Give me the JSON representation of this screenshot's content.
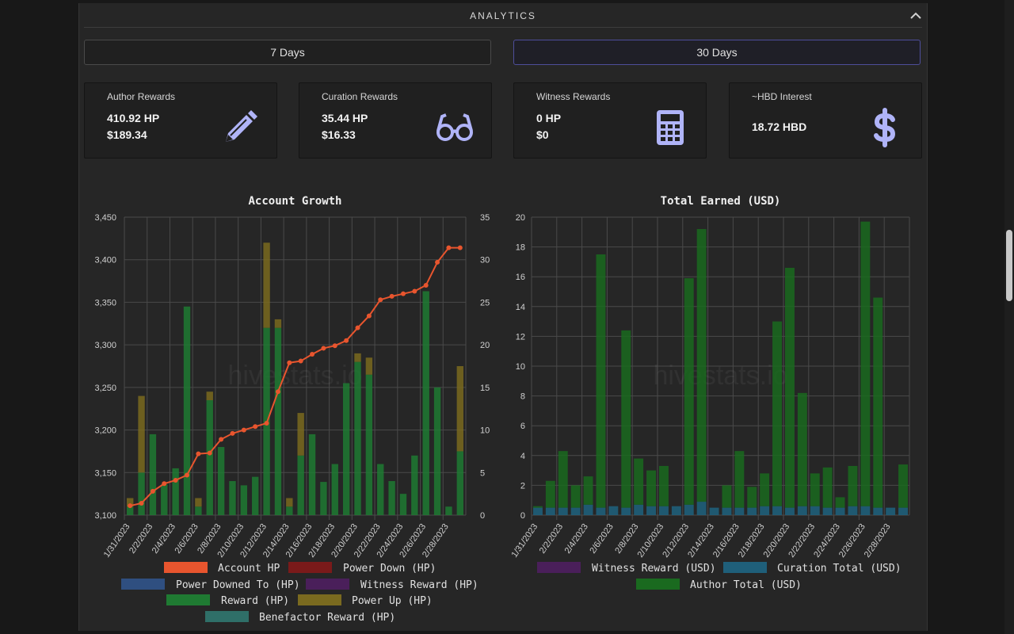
{
  "section": {
    "title": "ANALYTICS"
  },
  "periods": {
    "seven": "7 Days",
    "thirty": "30 Days",
    "active": "thirty"
  },
  "cards": [
    {
      "title": "Author Rewards",
      "value1": "410.92 HP",
      "value2": "$189.34",
      "icon": "pencil-icon"
    },
    {
      "title": "Curation Rewards",
      "value1": "35.44 HP",
      "value2": "$16.33",
      "icon": "glasses-icon"
    },
    {
      "title": "Witness Rewards",
      "value1": "0 HP",
      "value2": "$0",
      "icon": "calculator-icon"
    },
    {
      "title": "~HBD Interest",
      "value1": "18.72 HBD",
      "icon": "dollar-icon"
    }
  ],
  "colors": {
    "accent": "#b0b4f8",
    "account_hp": "#e8552e",
    "power_down": "#7a1a1a",
    "power_downed_to": "#2f4f80",
    "witness_reward": "#4a1f5a",
    "reward": "#1f7a32",
    "power_up": "#7a6a1f",
    "benefactor": "#2f6f68",
    "curation": "#1f5f7a",
    "author": "#1a6a1f"
  },
  "watermark": "hivestats.io",
  "chart_data": [
    {
      "type": "bar",
      "title": "Account Growth",
      "categories": [
        "1/31/2023",
        "2/1/2023",
        "2/2/2023",
        "2/3/2023",
        "2/4/2023",
        "2/5/2023",
        "2/6/2023",
        "2/7/2023",
        "2/8/2023",
        "2/9/2023",
        "2/10/2023",
        "2/11/2023",
        "2/12/2023",
        "2/13/2023",
        "2/14/2023",
        "2/15/2023",
        "2/16/2023",
        "2/17/2023",
        "2/18/2023",
        "2/19/2023",
        "2/20/2023",
        "2/21/2023",
        "2/22/2023",
        "2/23/2023",
        "2/24/2023",
        "2/25/2023",
        "2/26/2023",
        "2/27/2023",
        "2/28/2023",
        "3/1/2023"
      ],
      "tick_labels": [
        "1/31/2023",
        "2/2/2023",
        "2/4/2023",
        "2/6/2023",
        "2/8/2023",
        "2/10/2023",
        "2/12/2023",
        "2/14/2023",
        "2/16/2023",
        "2/18/2023",
        "2/20/2023",
        "2/22/2023",
        "2/24/2023",
        "2/26/2023",
        "2/28/2023"
      ],
      "y_left": {
        "min": 3100,
        "max": 3450,
        "ticks": [
          "3,100",
          "3,150",
          "3,200",
          "3,250",
          "3,300",
          "3,350",
          "3,400",
          "3,450"
        ]
      },
      "y_right": {
        "min": 0,
        "max": 35,
        "ticks": [
          "0",
          "5",
          "10",
          "15",
          "20",
          "25",
          "30",
          "35"
        ]
      },
      "series": [
        {
          "name": "Account HP",
          "type": "line",
          "axis": "left",
          "values": [
            3111,
            3114,
            3128,
            3137,
            3141,
            3147,
            3172,
            3173,
            3189,
            3196,
            3200,
            3204,
            3208,
            3245,
            3279,
            3281,
            3289,
            3296,
            3299,
            3305,
            3320,
            3334,
            3353,
            3357,
            3360,
            3363,
            3370,
            3397,
            3414,
            3414
          ]
        },
        {
          "name": "Power Down (HP)",
          "type": "bar",
          "axis": "right",
          "values": [
            0,
            0,
            0,
            0,
            0,
            0,
            0,
            0,
            0,
            0,
            0,
            0,
            0,
            0,
            0,
            0,
            0,
            0,
            0,
            0,
            0,
            0,
            0,
            0,
            0,
            0,
            0,
            0,
            0,
            0
          ]
        },
        {
          "name": "Power Downed To (HP)",
          "type": "bar",
          "axis": "right",
          "values": [
            0,
            0,
            0,
            0,
            0,
            0,
            0,
            0,
            0,
            0,
            0,
            0,
            0,
            0,
            0,
            0,
            0,
            0,
            0,
            0,
            0,
            0,
            0,
            0,
            0,
            0,
            0,
            0,
            0,
            0
          ]
        },
        {
          "name": "Witness Reward (HP)",
          "type": "bar",
          "axis": "right",
          "values": [
            0,
            0,
            0,
            0,
            0,
            0,
            0,
            0,
            0,
            0,
            0,
            0,
            0,
            0,
            0,
            0,
            0,
            0,
            0,
            0,
            0,
            0,
            0,
            0,
            0,
            0,
            0,
            0,
            0,
            0
          ]
        },
        {
          "name": "Reward (HP)",
          "type": "bar",
          "axis": "right",
          "values": [
            1,
            5,
            9.5,
            3.6,
            5.5,
            24.5,
            1,
            13.5,
            8,
            4,
            3.5,
            4.5,
            22,
            22,
            1,
            7,
            9.5,
            3.9,
            6,
            15.5,
            18,
            16.5,
            6,
            4,
            2.5,
            7,
            26.3,
            15,
            1,
            7.5
          ]
        },
        {
          "name": "Power Up (HP)",
          "type": "bar",
          "axis": "right",
          "values": [
            1,
            9,
            0,
            0,
            0,
            0,
            1,
            1,
            0,
            0,
            0,
            0,
            10,
            1,
            1,
            5,
            0,
            0,
            0,
            0,
            1,
            2,
            0,
            0,
            0,
            0,
            0,
            0,
            0,
            10
          ]
        },
        {
          "name": "Benefactor Reward (HP)",
          "type": "bar",
          "axis": "right",
          "values": [
            0,
            0,
            0,
            0,
            0,
            0,
            0,
            0,
            0,
            0,
            0,
            0,
            0,
            0,
            0,
            0,
            0,
            0,
            0,
            0,
            0,
            0,
            0,
            0,
            0,
            0,
            0,
            0,
            0,
            0
          ]
        }
      ]
    },
    {
      "type": "bar",
      "title": "Total Earned (USD)",
      "categories": [
        "1/31/2023",
        "2/1/2023",
        "2/2/2023",
        "2/3/2023",
        "2/4/2023",
        "2/5/2023",
        "2/6/2023",
        "2/7/2023",
        "2/8/2023",
        "2/9/2023",
        "2/10/2023",
        "2/11/2023",
        "2/12/2023",
        "2/13/2023",
        "2/14/2023",
        "2/15/2023",
        "2/16/2023",
        "2/17/2023",
        "2/18/2023",
        "2/19/2023",
        "2/20/2023",
        "2/21/2023",
        "2/22/2023",
        "2/23/2023",
        "2/24/2023",
        "2/25/2023",
        "2/26/2023",
        "2/27/2023",
        "2/28/2023",
        "3/1/2023"
      ],
      "tick_labels": [
        "1/31/2023",
        "2/2/2023",
        "2/4/2023",
        "2/6/2023",
        "2/8/2023",
        "2/10/2023",
        "2/12/2023",
        "2/14/2023",
        "2/16/2023",
        "2/18/2023",
        "2/20/2023",
        "2/22/2023",
        "2/24/2023",
        "2/26/2023",
        "2/28/2023"
      ],
      "y": {
        "min": 0,
        "max": 20,
        "ticks": [
          "0",
          "2",
          "4",
          "6",
          "8",
          "10",
          "12",
          "14",
          "16",
          "18",
          "20"
        ]
      },
      "series": [
        {
          "name": "Witness Reward (USD)",
          "values": [
            0,
            0,
            0,
            0,
            0,
            0,
            0,
            0,
            0,
            0,
            0,
            0,
            0,
            0,
            0,
            0,
            0,
            0,
            0,
            0,
            0,
            0,
            0,
            0,
            0,
            0,
            0,
            0,
            0,
            0
          ]
        },
        {
          "name": "Curation Total (USD)",
          "values": [
            0.5,
            0.5,
            0.5,
            0.5,
            0.7,
            0.5,
            0.6,
            0.5,
            0.7,
            0.6,
            0.6,
            0.6,
            0.7,
            0.9,
            0.5,
            0.5,
            0.5,
            0.5,
            0.6,
            0.6,
            0.5,
            0.6,
            0.6,
            0.5,
            0.5,
            0.6,
            0.6,
            0.5,
            0.5,
            0.5
          ]
        },
        {
          "name": "Author Total (USD)",
          "values": [
            0.1,
            1.8,
            3.8,
            1.5,
            1.9,
            17.0,
            0,
            11.9,
            3.1,
            2.4,
            2.7,
            0,
            15.2,
            18.3,
            0,
            1.5,
            3.8,
            1.4,
            2.2,
            12.4,
            16.1,
            7.6,
            2.2,
            2.7,
            0.7,
            2.7,
            19.1,
            14.1,
            0,
            2.9
          ]
        }
      ]
    }
  ]
}
